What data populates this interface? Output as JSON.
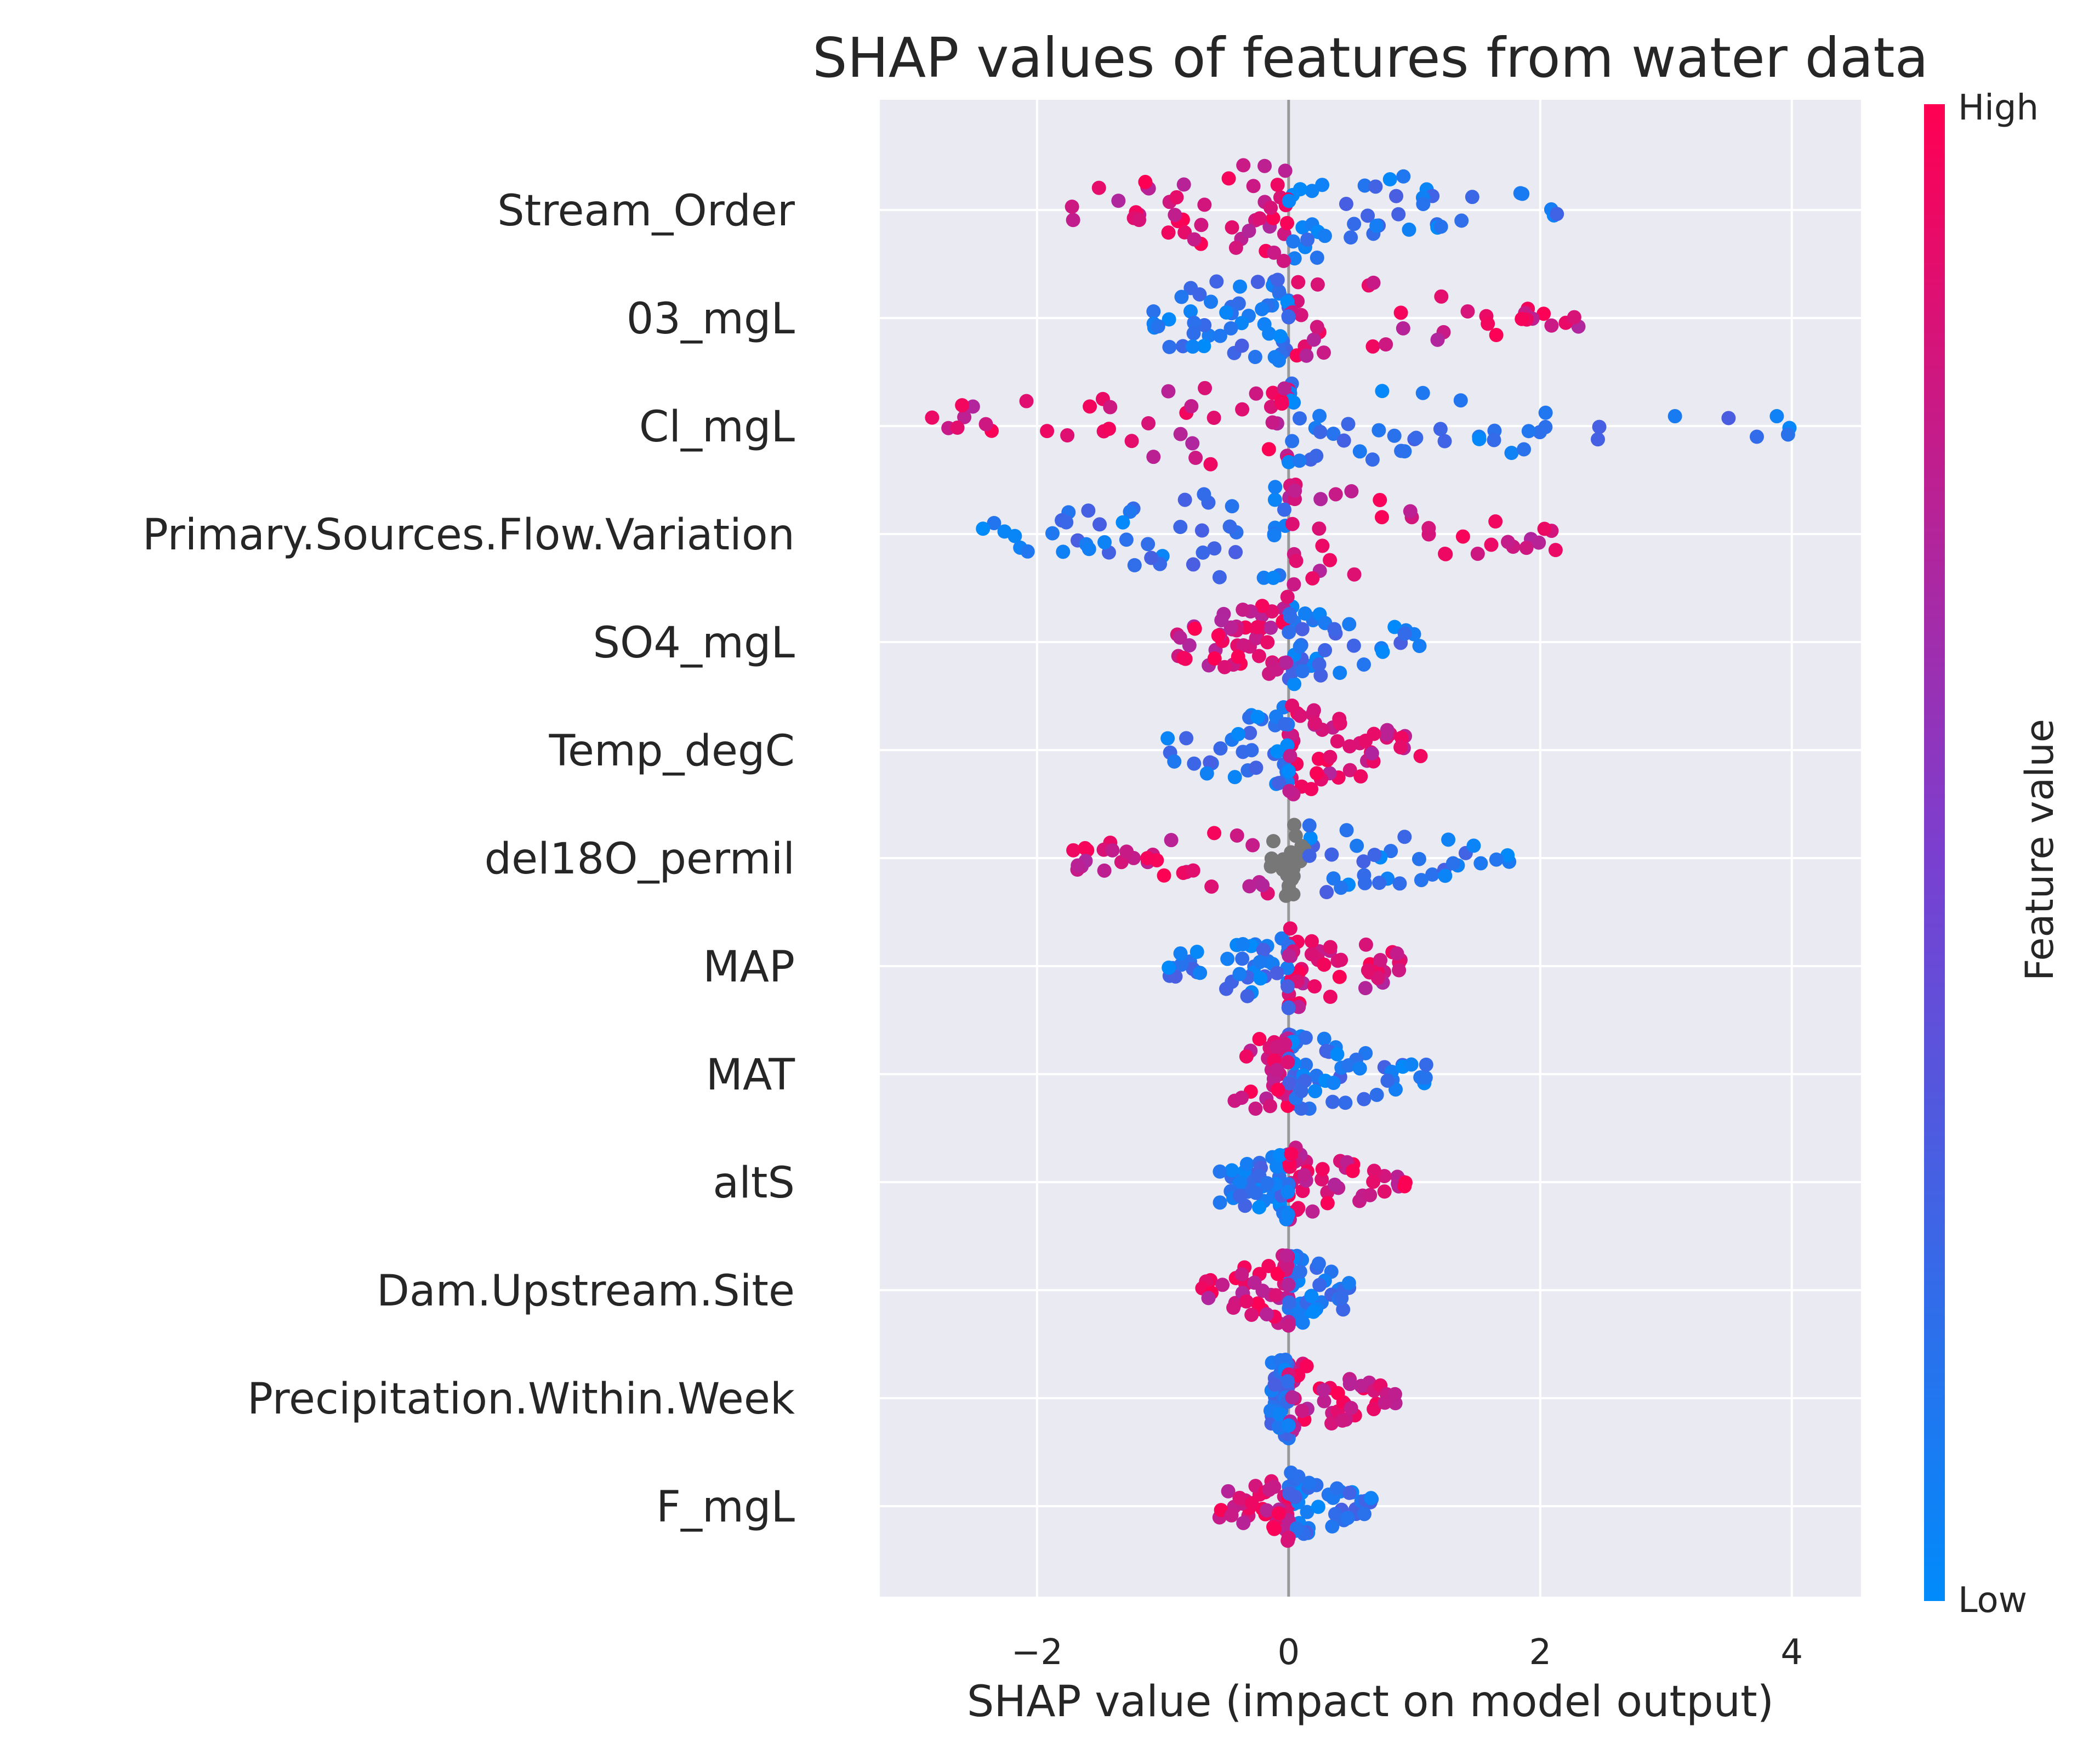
{
  "chart_data": {
    "type": "scatter",
    "subtype": "shap-beeswarm",
    "title": "SHAP values of features from water data",
    "xlabel": "SHAP value (impact on model output)",
    "ylabel": "",
    "xlim": [
      -3.25,
      4.55
    ],
    "xticks": [
      -2,
      0,
      2,
      4
    ],
    "xtick_labels": [
      "−2",
      "0",
      "2",
      "4"
    ],
    "grid": true,
    "background": "#eaeaf2",
    "features": [
      "Stream_Order",
      "03_mgL",
      "Cl_mgL",
      "Primary.Sources.Flow.Variation",
      "SO4_mgL",
      "Temp_degC",
      "del18O_permil",
      "MAP",
      "MAT",
      "altS",
      "Dam.Upstream.Site",
      "Precipitation.Within.Week",
      "F_mgL"
    ],
    "feature_ranges": [
      {
        "min": -1.8,
        "max": 2.2,
        "spread": 0.9
      },
      {
        "min": -1.15,
        "max": 2.35,
        "spread": 0.8
      },
      {
        "min": -2.95,
        "max": 4.2,
        "spread": 0.75
      },
      {
        "min": -2.5,
        "max": 2.25,
        "spread": 0.9
      },
      {
        "min": -0.95,
        "max": 1.05,
        "spread": 0.8
      },
      {
        "min": -0.98,
        "max": 1.1,
        "spread": 0.8
      },
      {
        "min": -1.75,
        "max": 1.9,
        "spread": 0.7
      },
      {
        "min": -1.0,
        "max": 0.95,
        "spread": 0.75
      },
      {
        "min": -0.45,
        "max": 1.2,
        "spread": 0.75
      },
      {
        "min": -0.55,
        "max": 0.98,
        "spread": 0.65
      },
      {
        "min": -0.72,
        "max": 0.5,
        "spread": 0.65
      },
      {
        "min": -0.15,
        "max": 0.85,
        "spread": 0.7
      },
      {
        "min": -0.6,
        "max": 0.7,
        "spread": 0.6
      }
    ],
    "colorbar": {
      "label": "Feature value",
      "high": "High",
      "low": "Low",
      "low_color": "#008bfb",
      "high_color": "#ff0052",
      "missing_color": "#777777"
    }
  }
}
